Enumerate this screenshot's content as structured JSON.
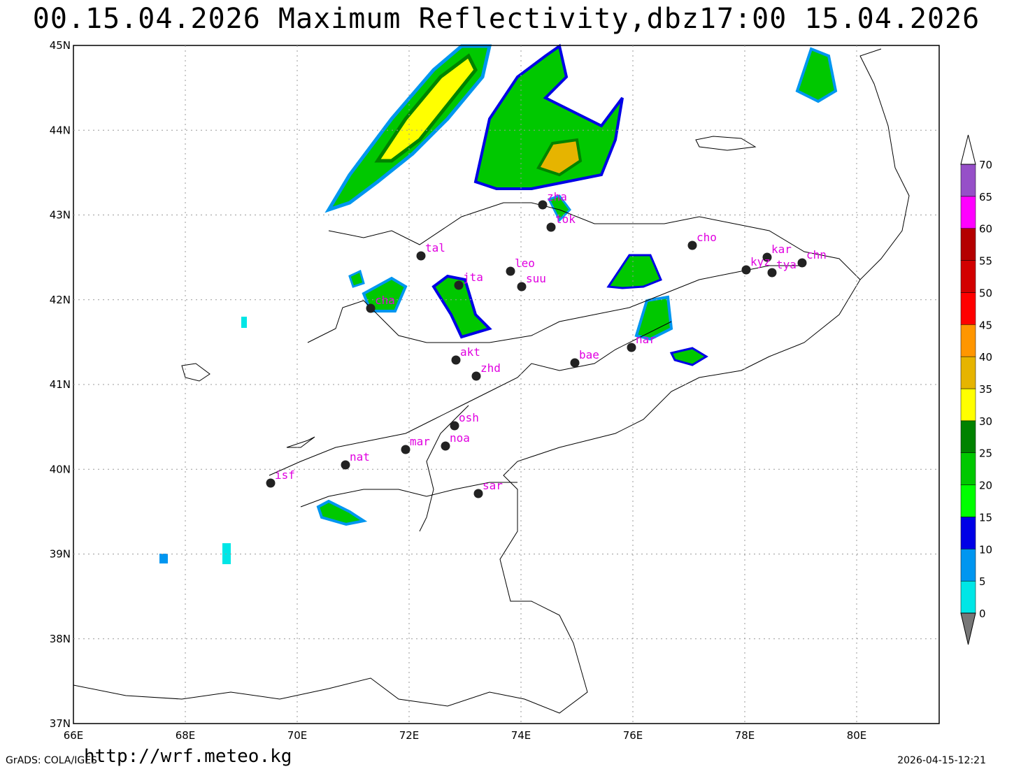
{
  "title": "00.15.04.2026  Maximum  Reflectivity,dbz17:00  15.04.2026",
  "lat_labels": [
    "45N",
    "44N",
    "43N",
    "42N",
    "41N",
    "40N",
    "39N",
    "38N",
    "37N"
  ],
  "lon_labels": [
    "66E",
    "68E",
    "70E",
    "72E",
    "74E",
    "76E",
    "78E",
    "80E"
  ],
  "stations": [
    "tal",
    "leo",
    "jta",
    "suu",
    "cha",
    "akt",
    "zhd",
    "bae",
    "nar",
    "cho",
    "kar",
    "kyz",
    "tya",
    "chn",
    "zha",
    "tok",
    "osh",
    "mar",
    "noa",
    "nat",
    "isf",
    "sar"
  ],
  "legend": {
    "labels": [
      0,
      5,
      10,
      15,
      20,
      25,
      30,
      35,
      40,
      45,
      50,
      55,
      60,
      65,
      70
    ],
    "colors": [
      "#00e6e6",
      "#0096f0",
      "#0000e6",
      "#00ff00",
      "#00c800",
      "#008200",
      "#ffff00",
      "#e6b400",
      "#ff9600",
      "#ff0000",
      "#d20000",
      "#b40000",
      "#ff00ff",
      "#9650c8"
    ]
  },
  "footer": {
    "left": "GrADS: COLA/IGES",
    "url": "http://wrf.meteo.kg",
    "right": "2026-04-15-12:21"
  }
}
